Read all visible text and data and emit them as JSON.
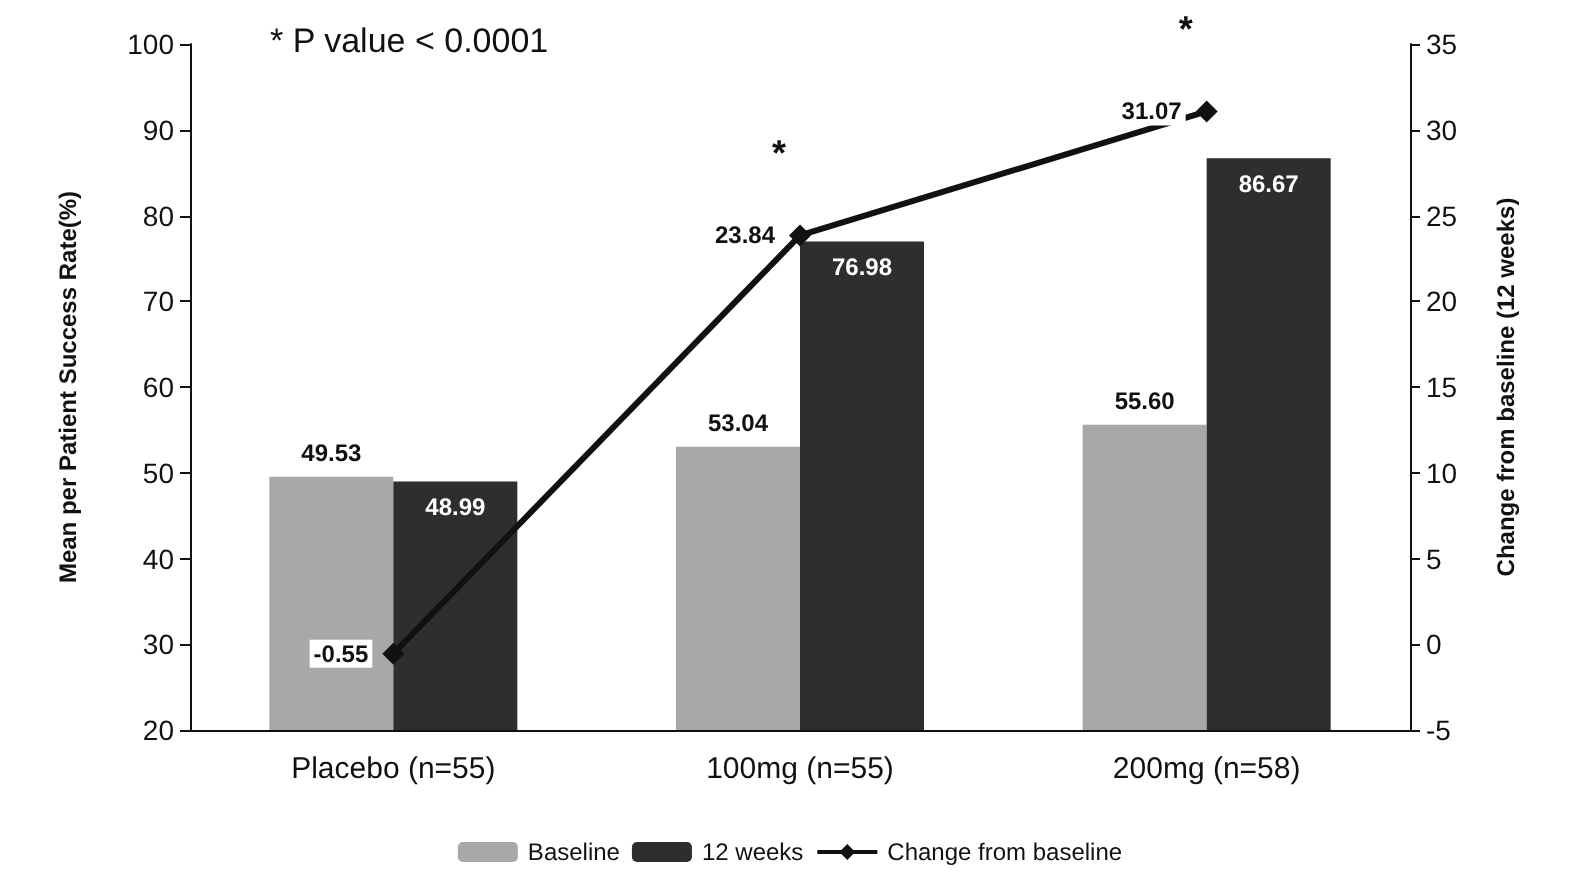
{
  "chart_data": {
    "type": "bar",
    "categories": [
      "Placebo (n=55)",
      "100mg (n=55)",
      "200mg (n=58)"
    ],
    "series": [
      {
        "name": "Baseline",
        "color": "#a8a8a8",
        "values": [
          49.53,
          53.04,
          55.6
        ],
        "value_labels": [
          "49.53",
          "53.04",
          "55.60"
        ]
      },
      {
        "name": "12 weeks",
        "color": "#2e2e2e",
        "values": [
          48.99,
          76.98,
          86.67
        ],
        "value_labels": [
          "48.99",
          "76.98",
          "86.67"
        ]
      },
      {
        "name": "Change from baseline",
        "type": "line",
        "axis": "y2",
        "color": "#111111",
        "marker": "diamond",
        "values": [
          -0.55,
          23.84,
          31.07
        ],
        "value_labels": [
          "-0.55",
          "23.84",
          "31.07"
        ]
      }
    ],
    "ylabel": "Mean per Patient Success Rate(%)",
    "y2label": "Change from baseline (12 weeks)",
    "ylim": [
      20,
      100
    ],
    "yticks": [
      20,
      30,
      40,
      50,
      60,
      70,
      80,
      90,
      100
    ],
    "y2lim": [
      -5,
      35
    ],
    "y2ticks": [
      -5,
      0,
      5,
      10,
      15,
      20,
      25,
      30,
      35
    ],
    "annotations": [
      "* P value < 0.0001",
      "*",
      "*"
    ],
    "grid": false,
    "legend": "bottom"
  }
}
